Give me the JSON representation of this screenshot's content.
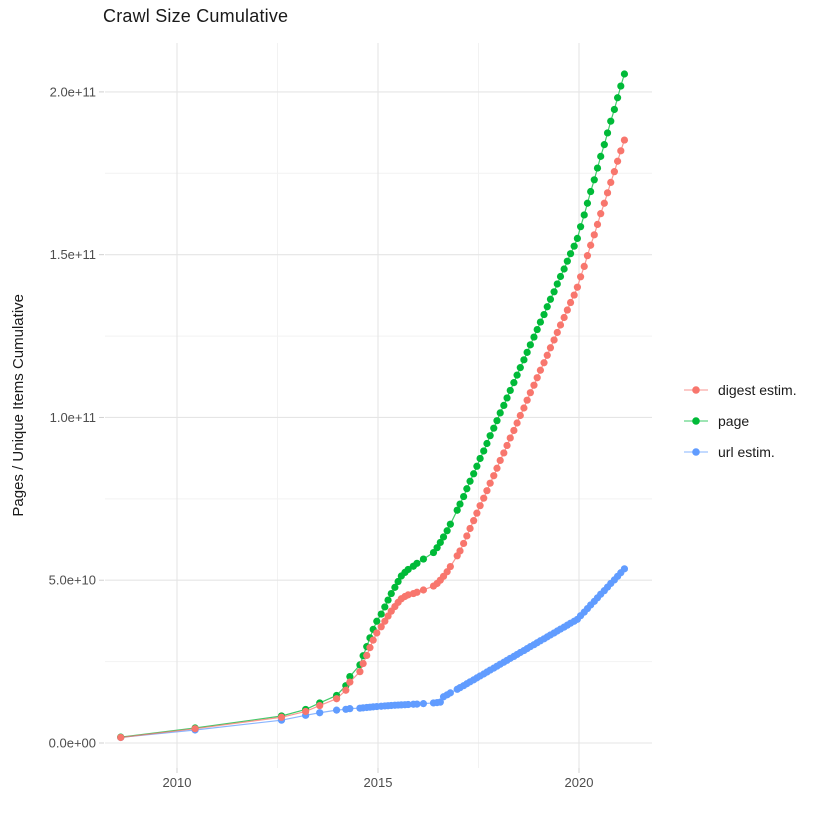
{
  "title": "Crawl Size Cumulative",
  "axes": {
    "y_label": "Pages / Unique Items Cumulative",
    "y_tick_labels": [
      "0.0e+00",
      "5.0e+10",
      "1.0e+11",
      "1.5e+11",
      "2.0e+11"
    ],
    "x_tick_labels": [
      "2010",
      "2015",
      "2020"
    ]
  },
  "legend": {
    "items": [
      {
        "label": "digest estim.",
        "color": "#F8766D"
      },
      {
        "label": "page",
        "color": "#00BA38"
      },
      {
        "label": "url estim.",
        "color": "#619CFF"
      }
    ]
  },
  "chart_data": {
    "type": "scatter",
    "title": "Crawl Size Cumulative",
    "xlabel": "",
    "ylabel": "Pages / Unique Items Cumulative",
    "grid": true,
    "legend_position": "right",
    "x_unit": "year (decimal)",
    "value_unit": "cumulative pages / unique items, in billions (1e9)",
    "xlim": [
      2008.2,
      2021.8
    ],
    "ylim": [
      0,
      215
    ],
    "x_ticks": [
      {
        "value": 2010,
        "label": "2010"
      },
      {
        "value": 2015,
        "label": "2015"
      },
      {
        "value": 2020,
        "label": "2020"
      }
    ],
    "y_ticks": [
      {
        "value": 0,
        "label": "0.0e+00"
      },
      {
        "value": 50,
        "label": "5.0e+10"
      },
      {
        "value": 100,
        "label": "1.0e+11"
      },
      {
        "value": 150,
        "label": "1.5e+11"
      },
      {
        "value": 200,
        "label": "2.0e+11"
      }
    ],
    "x_minor_ticks": [
      2012.5,
      2017.5
    ],
    "y_minor_ticks": [
      25,
      75,
      125,
      175
    ],
    "x": [
      2008.6,
      2010.45,
      2012.6,
      2013.2,
      2013.55,
      2013.97,
      2014.2,
      2014.3,
      2014.55,
      2014.63,
      2014.72,
      2014.8,
      2014.88,
      2014.97,
      2015.08,
      2015.17,
      2015.25,
      2015.33,
      2015.42,
      2015.5,
      2015.58,
      2015.67,
      2015.75,
      2015.88,
      2015.97,
      2016.13,
      2016.38,
      2016.47,
      2016.55,
      2016.63,
      2016.72,
      2016.8,
      2016.97,
      2017.04,
      2017.13,
      2017.21,
      2017.29,
      2017.38,
      2017.46,
      2017.54,
      2017.63,
      2017.71,
      2017.79,
      2017.88,
      2017.96,
      2018.04,
      2018.13,
      2018.21,
      2018.29,
      2018.38,
      2018.46,
      2018.54,
      2018.63,
      2018.71,
      2018.79,
      2018.88,
      2018.96,
      2019.04,
      2019.13,
      2019.21,
      2019.29,
      2019.38,
      2019.46,
      2019.54,
      2019.63,
      2019.71,
      2019.79,
      2019.88,
      2019.96,
      2020.04,
      2020.13,
      2020.21,
      2020.29,
      2020.38,
      2020.46,
      2020.54,
      2020.63,
      2020.71,
      2020.79,
      2020.88,
      2020.96,
      2021.04,
      2021.13
    ],
    "series": [
      {
        "name": "digest estim.",
        "color": "#F8766D",
        "values": [
          1.7,
          4.4,
          7.9,
          9.7,
          11.5,
          13.6,
          16.2,
          18.7,
          21.9,
          24.4,
          26.9,
          29.3,
          31.6,
          33.8,
          35.7,
          37.4,
          39.0,
          40.5,
          41.9,
          43.2,
          44.3,
          45.0,
          45.5,
          45.9,
          46.3,
          47.0,
          48.2,
          49.0,
          50.0,
          51.2,
          52.6,
          54.2,
          57.5,
          59.0,
          61.3,
          63.6,
          65.9,
          68.3,
          70.6,
          72.9,
          75.2,
          77.5,
          79.8,
          82.1,
          84.4,
          86.8,
          89.1,
          91.4,
          93.7,
          96.0,
          98.3,
          100.6,
          102.9,
          105.3,
          107.6,
          109.9,
          112.2,
          114.5,
          116.8,
          119.1,
          121.4,
          123.8,
          126.1,
          128.4,
          130.7,
          133.0,
          135.3,
          137.6,
          140.0,
          143.2,
          146.4,
          149.7,
          152.9,
          156.1,
          159.3,
          162.6,
          165.8,
          169.0,
          172.2,
          175.5,
          178.7,
          181.9,
          185.2
        ]
      },
      {
        "name": "page",
        "color": "#00BA38",
        "values": [
          1.8,
          4.6,
          8.3,
          10.3,
          12.3,
          14.6,
          17.6,
          20.4,
          24.0,
          26.8,
          29.6,
          32.3,
          34.9,
          37.4,
          39.6,
          41.8,
          43.9,
          45.9,
          47.8,
          49.6,
          51.3,
          52.4,
          53.3,
          54.3,
          55.2,
          56.5,
          58.5,
          60.0,
          61.6,
          63.3,
          65.2,
          67.2,
          71.5,
          73.4,
          75.7,
          78.1,
          80.4,
          82.7,
          85.0,
          87.4,
          89.7,
          92.0,
          94.4,
          96.7,
          99.0,
          101.4,
          103.7,
          106.0,
          108.3,
          110.7,
          113.0,
          115.3,
          117.7,
          120.0,
          122.3,
          124.7,
          127.0,
          129.3,
          131.6,
          134.0,
          136.3,
          138.6,
          141.0,
          143.3,
          145.6,
          148.0,
          150.3,
          152.6,
          155.0,
          158.6,
          162.2,
          165.8,
          169.4,
          173.0,
          176.6,
          180.2,
          183.8,
          187.4,
          191.0,
          194.6,
          198.2,
          201.8,
          205.5
        ]
      },
      {
        "name": "url estim.",
        "color": "#619CFF",
        "values": [
          1.7,
          4.0,
          7.0,
          8.5,
          9.3,
          10.1,
          10.35,
          10.55,
          10.7,
          10.8,
          10.9,
          11.0,
          11.1,
          11.2,
          11.3,
          11.38,
          11.45,
          11.52,
          11.6,
          11.65,
          11.7,
          11.76,
          11.82,
          11.9,
          11.95,
          12.1,
          12.3,
          12.4,
          12.55,
          14.2,
          14.8,
          15.4,
          16.5,
          17.0,
          17.6,
          18.2,
          18.8,
          19.4,
          20.0,
          20.6,
          21.2,
          21.8,
          22.4,
          23.0,
          23.6,
          24.2,
          24.8,
          25.4,
          26.0,
          26.6,
          27.2,
          27.8,
          28.4,
          29.0,
          29.6,
          30.2,
          30.8,
          31.4,
          32.0,
          32.6,
          33.2,
          33.8,
          34.4,
          35.0,
          35.6,
          36.2,
          36.8,
          37.4,
          38.0,
          39.1,
          40.2,
          41.3,
          42.4,
          43.5,
          44.6,
          45.7,
          46.8,
          47.9,
          49.0,
          50.1,
          51.2,
          52.3,
          53.5
        ]
      }
    ]
  }
}
